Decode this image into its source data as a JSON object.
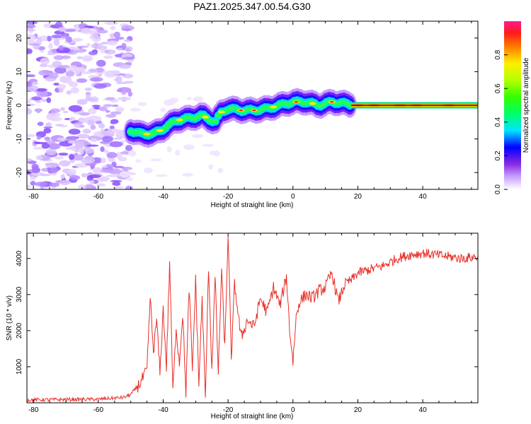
{
  "chart_data": [
    {
      "type": "heatmap",
      "title": "PAZ1.2025.347.00.54.G30",
      "xlabel": "Height of straight line (km)",
      "ylabel": "Frequency (Hz)",
      "xlim": [
        -82,
        57
      ],
      "ylim": [
        -25,
        25
      ],
      "xticks": [
        "-80",
        "-60",
        "-40",
        "-20",
        "0",
        "20",
        "40"
      ],
      "yticks": [
        "20",
        "10",
        "0",
        "-10",
        "-20"
      ],
      "ridge": {
        "x": [
          -50,
          -47,
          -43,
          -40,
          -36,
          -33,
          -30,
          -28,
          -26,
          -24,
          -22,
          -20,
          -16,
          -12,
          -8,
          -4,
          0,
          4,
          8,
          12,
          16,
          20,
          30,
          40,
          57
        ],
        "freq": [
          -7.5,
          -8.5,
          -8.5,
          -7,
          -4.5,
          -4,
          -3.5,
          -3,
          -4,
          -5,
          -2,
          -1,
          -1.5,
          -1.5,
          -1,
          0,
          1,
          1,
          0,
          1,
          0.5,
          0,
          0,
          0,
          0
        ]
      },
      "colorbar": {
        "label": "Normalized spectral amplitude",
        "ticks": [
          "0.0",
          "0.2",
          "0.4",
          "0.6",
          "0.8"
        ],
        "range": [
          0,
          1
        ]
      }
    },
    {
      "type": "line",
      "xlabel": "Height of straight line (km)",
      "ylabel": "SNR (10 * v/v)",
      "xlim": [
        -82,
        57
      ],
      "ylim": [
        0,
        4700
      ],
      "xticks": [
        "-80",
        "-60",
        "-40",
        "-20",
        "0",
        "20",
        "40"
      ],
      "yticks": [
        "4000",
        "3000",
        "2000",
        "1000"
      ],
      "series": [
        {
          "name": "SNR",
          "color": "#e8302a",
          "x": [
            -82,
            -60,
            -52,
            -50,
            -47,
            -45,
            -44,
            -43,
            -42,
            -41,
            -40,
            -39,
            -38,
            -37,
            -36,
            -35,
            -34,
            -33,
            -32,
            -31,
            -30,
            -29,
            -28,
            -27,
            -26,
            -25,
            -24,
            -23,
            -22,
            -21,
            -20,
            -19,
            -18,
            -16,
            -14,
            -12,
            -10,
            -8,
            -6,
            -4,
            -2,
            -1,
            0,
            1,
            2,
            4,
            6,
            8,
            10,
            12,
            14,
            16,
            18,
            20,
            24,
            28,
            32,
            36,
            40,
            44,
            48,
            52,
            57
          ],
          "values": [
            80,
            100,
            150,
            230,
            550,
            900,
            2900,
            1400,
            2300,
            800,
            2600,
            1000,
            3900,
            300,
            2100,
            1100,
            2500,
            300,
            3200,
            900,
            3400,
            500,
            2900,
            100,
            3800,
            900,
            3500,
            800,
            3700,
            1500,
            4700,
            1200,
            3300,
            1800,
            2300,
            2100,
            2900,
            2500,
            3200,
            2700,
            3500,
            2000,
            1150,
            2400,
            2800,
            3000,
            2900,
            3100,
            3200,
            3600,
            2800,
            3300,
            3400,
            3600,
            3700,
            3800,
            4000,
            4100,
            4150,
            4100,
            4050,
            4000,
            4050
          ]
        }
      ]
    }
  ]
}
